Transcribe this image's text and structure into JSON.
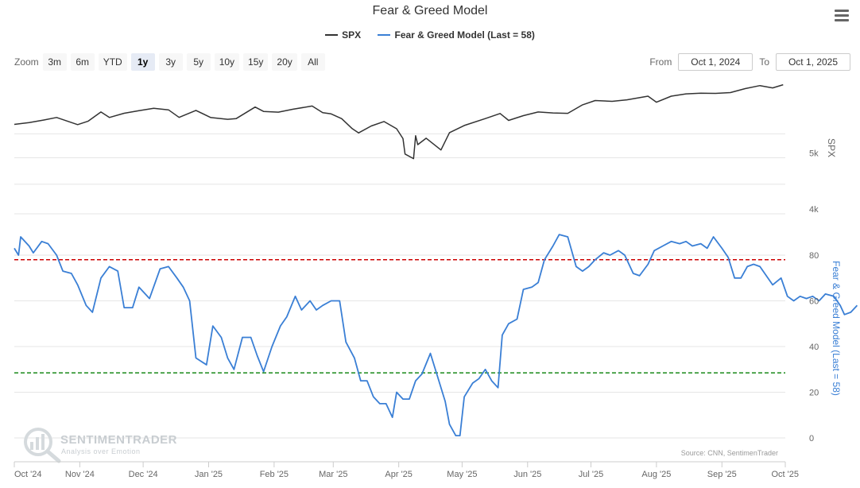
{
  "title": "Fear & Greed Model",
  "menu_icon": "hamburger-menu-icon",
  "legend": [
    {
      "label": "SPX",
      "color": "#333333"
    },
    {
      "label": "Fear & Greed Model (Last = 58)",
      "color": "#3a7fd5"
    }
  ],
  "zoom": {
    "label": "Zoom",
    "buttons": [
      "3m",
      "6m",
      "YTD",
      "1y",
      "3y",
      "5y",
      "10y",
      "15y",
      "20y",
      "All"
    ],
    "active": "1y"
  },
  "range": {
    "from_label": "From",
    "from_value": "Oct 1, 2024",
    "to_label": "To",
    "to_value": "Oct 1, 2025"
  },
  "credit": "Source: CNN, SentimenTrader",
  "watermark": {
    "name": "SENTIMENTRADER",
    "tagline": "Analysis over Emotion"
  },
  "chart_data": {
    "type": "line",
    "x_range": [
      "2024-10-01",
      "2025-10-01"
    ],
    "x_tick_labels": [
      "Oct '24",
      "Nov '24",
      "Dec '24",
      "Jan '25",
      "Feb '25",
      "Mar '25",
      "Apr '25",
      "May '25",
      "Jun '25",
      "Jul '25",
      "Aug '25",
      "Sep '25",
      "Oct '25"
    ],
    "panes": [
      {
        "name": "spx",
        "ylabel": "SPX",
        "y_tick_labels": [
          "4k",
          "5k"
        ],
        "y_tick_values": [
          4000,
          5000
        ],
        "color": "#333333",
        "series": [
          {
            "name": "SPX",
            "points": [
              [
                "2024-10-01",
                5710
              ],
              [
                "2024-10-08",
                5750
              ],
              [
                "2024-10-15",
                5810
              ],
              [
                "2024-10-21",
                5870
              ],
              [
                "2024-10-31",
                5705
              ],
              [
                "2024-11-05",
                5785
              ],
              [
                "2024-11-11",
                6000
              ],
              [
                "2024-11-15",
                5870
              ],
              [
                "2024-11-22",
                5970
              ],
              [
                "2024-11-29",
                6032
              ],
              [
                "2024-12-06",
                6090
              ],
              [
                "2024-12-13",
                6050
              ],
              [
                "2024-12-18",
                5872
              ],
              [
                "2024-12-26",
                6037
              ],
              [
                "2025-01-02",
                5868
              ],
              [
                "2025-01-10",
                5827
              ],
              [
                "2025-01-14",
                5842
              ],
              [
                "2025-01-23",
                6118
              ],
              [
                "2025-01-27",
                6012
              ],
              [
                "2025-02-03",
                5995
              ],
              [
                "2025-02-10",
                6066
              ],
              [
                "2025-02-19",
                6144
              ],
              [
                "2025-02-24",
                5985
              ],
              [
                "2025-02-28",
                5954
              ],
              [
                "2025-03-05",
                5842
              ],
              [
                "2025-03-10",
                5614
              ],
              [
                "2025-03-13",
                5521
              ],
              [
                "2025-03-19",
                5675
              ],
              [
                "2025-03-25",
                5776
              ],
              [
                "2025-03-31",
                5612
              ],
              [
                "2025-04-03",
                5396
              ],
              [
                "2025-04-04",
                5074
              ],
              [
                "2025-04-08",
                4982
              ],
              [
                "2025-04-09",
                5457
              ],
              [
                "2025-04-10",
                5268
              ],
              [
                "2025-04-14",
                5405
              ],
              [
                "2025-04-21",
                5158
              ],
              [
                "2025-04-25",
                5525
              ],
              [
                "2025-05-02",
                5686
              ],
              [
                "2025-05-12",
                5844
              ],
              [
                "2025-05-19",
                5963
              ],
              [
                "2025-05-23",
                5802
              ],
              [
                "2025-05-30",
                5912
              ],
              [
                "2025-06-06",
                6000
              ],
              [
                "2025-06-13",
                5977
              ],
              [
                "2025-06-20",
                5967
              ],
              [
                "2025-06-27",
                6173
              ],
              [
                "2025-07-03",
                6279
              ],
              [
                "2025-07-11",
                6260
              ],
              [
                "2025-07-18",
                6297
              ],
              [
                "2025-07-28",
                6389
              ],
              [
                "2025-08-01",
                6238
              ],
              [
                "2025-08-08",
                6389
              ],
              [
                "2025-08-15",
                6449
              ],
              [
                "2025-08-22",
                6466
              ],
              [
                "2025-08-29",
                6460
              ],
              [
                "2025-09-05",
                6481
              ],
              [
                "2025-09-12",
                6584
              ],
              [
                "2025-09-19",
                6664
              ],
              [
                "2025-09-25",
                6604
              ],
              [
                "2025-09-30",
                6688
              ]
            ]
          }
        ]
      },
      {
        "name": "fear-greed",
        "ylabel": "Fear & Greed Model (Last = 58)",
        "y_tick_values": [
          0,
          20,
          40,
          60,
          80
        ],
        "ylim": [
          -3,
          100
        ],
        "color": "#3a7fd5",
        "reference_lines": [
          {
            "value": 78,
            "color": "#cc0000",
            "style": "dashed"
          },
          {
            "value": 28.5,
            "color": "#1a8a1a",
            "style": "dashed"
          }
        ],
        "series": [
          {
            "name": "Fear & Greed Model (Last = 58)",
            "points": [
              [
                "2024-10-01",
                83
              ],
              [
                "2024-10-03",
                80
              ],
              [
                "2024-10-04",
                88
              ],
              [
                "2024-10-08",
                84
              ],
              [
                "2024-10-10",
                81
              ],
              [
                "2024-10-14",
                86
              ],
              [
                "2024-10-17",
                85
              ],
              [
                "2024-10-21",
                80
              ],
              [
                "2024-10-24",
                73
              ],
              [
                "2024-10-28",
                72
              ],
              [
                "2024-10-31",
                67
              ],
              [
                "2024-11-04",
                58
              ],
              [
                "2024-11-07",
                55
              ],
              [
                "2024-11-11",
                70
              ],
              [
                "2024-11-15",
                75
              ],
              [
                "2024-11-19",
                73
              ],
              [
                "2024-11-22",
                57
              ],
              [
                "2024-11-26",
                57
              ],
              [
                "2024-11-29",
                66
              ],
              [
                "2024-12-04",
                61
              ],
              [
                "2024-12-09",
                74
              ],
              [
                "2024-12-13",
                75
              ],
              [
                "2024-12-17",
                70
              ],
              [
                "2024-12-20",
                66
              ],
              [
                "2024-12-23",
                60
              ],
              [
                "2024-12-26",
                35
              ],
              [
                "2024-12-31",
                32
              ],
              [
                "2025-01-03",
                49
              ],
              [
                "2025-01-07",
                44
              ],
              [
                "2025-01-10",
                35
              ],
              [
                "2025-01-13",
                30
              ],
              [
                "2025-01-17",
                44
              ],
              [
                "2025-01-21",
                44
              ],
              [
                "2025-01-24",
                36
              ],
              [
                "2025-01-27",
                29
              ],
              [
                "2025-01-31",
                40
              ],
              [
                "2025-02-04",
                49
              ],
              [
                "2025-02-07",
                53
              ],
              [
                "2025-02-11",
                62
              ],
              [
                "2025-02-14",
                56
              ],
              [
                "2025-02-18",
                60
              ],
              [
                "2025-02-21",
                56
              ],
              [
                "2025-02-24",
                58
              ],
              [
                "2025-02-28",
                60
              ],
              [
                "2025-03-04",
                60
              ],
              [
                "2025-03-07",
                42
              ],
              [
                "2025-03-11",
                35
              ],
              [
                "2025-03-14",
                25
              ],
              [
                "2025-03-17",
                25
              ],
              [
                "2025-03-20",
                18
              ],
              [
                "2025-03-23",
                15
              ],
              [
                "2025-03-26",
                15
              ],
              [
                "2025-03-29",
                9
              ],
              [
                "2025-03-31",
                20
              ],
              [
                "2025-04-03",
                17
              ],
              [
                "2025-04-06",
                17
              ],
              [
                "2025-04-09",
                25
              ],
              [
                "2025-04-12",
                28
              ],
              [
                "2025-04-16",
                37
              ],
              [
                "2025-04-19",
                28
              ],
              [
                "2025-04-23",
                16
              ],
              [
                "2025-04-25",
                6
              ],
              [
                "2025-04-28",
                1
              ],
              [
                "2025-04-30",
                1
              ],
              [
                "2025-05-02",
                18
              ],
              [
                "2025-05-06",
                24
              ],
              [
                "2025-05-09",
                26
              ],
              [
                "2025-05-12",
                30
              ],
              [
                "2025-05-15",
                25
              ],
              [
                "2025-05-18",
                22
              ],
              [
                "2025-05-20",
                45
              ],
              [
                "2025-05-23",
                50
              ],
              [
                "2025-05-27",
                52
              ],
              [
                "2025-05-30",
                65
              ],
              [
                "2025-06-03",
                66
              ],
              [
                "2025-06-06",
                68
              ],
              [
                "2025-06-09",
                78
              ],
              [
                "2025-06-13",
                84
              ],
              [
                "2025-06-16",
                89
              ],
              [
                "2025-06-20",
                88
              ],
              [
                "2025-06-24",
                75
              ],
              [
                "2025-06-27",
                73
              ],
              [
                "2025-06-30",
                75
              ],
              [
                "2025-07-03",
                78
              ],
              [
                "2025-07-07",
                81
              ],
              [
                "2025-07-10",
                80
              ],
              [
                "2025-07-14",
                82
              ],
              [
                "2025-07-17",
                80
              ],
              [
                "2025-07-21",
                72
              ],
              [
                "2025-07-24",
                71
              ],
              [
                "2025-07-28",
                76
              ],
              [
                "2025-07-31",
                82
              ],
              [
                "2025-08-04",
                84
              ],
              [
                "2025-08-08",
                86
              ],
              [
                "2025-08-12",
                85
              ],
              [
                "2025-08-15",
                86
              ],
              [
                "2025-08-18",
                84
              ],
              [
                "2025-08-22",
                85
              ],
              [
                "2025-08-25",
                83
              ],
              [
                "2025-08-28",
                88
              ],
              [
                "2025-09-01",
                83
              ],
              [
                "2025-09-04",
                79
              ],
              [
                "2025-09-07",
                70
              ],
              [
                "2025-09-10",
                70
              ],
              [
                "2025-09-13",
                75
              ],
              [
                "2025-09-16",
                76
              ],
              [
                "2025-09-19",
                75
              ],
              [
                "2025-09-22",
                71
              ],
              [
                "2025-09-25",
                67
              ],
              [
                "2025-09-29",
                70
              ],
              [
                "2025-10-02",
                62
              ],
              [
                "2025-10-05",
                60
              ],
              [
                "2025-10-08",
                62
              ],
              [
                "2025-10-11",
                61
              ],
              [
                "2025-10-14",
                62
              ],
              [
                "2025-10-17",
                60
              ],
              [
                "2025-10-20",
                63
              ],
              [
                "2025-10-24",
                62
              ],
              [
                "2025-10-27",
                58
              ],
              [
                "2025-10-29",
                54
              ],
              [
                "2025-11-01",
                55
              ],
              [
                "2025-11-04",
                58
              ]
            ]
          }
        ]
      }
    ]
  }
}
